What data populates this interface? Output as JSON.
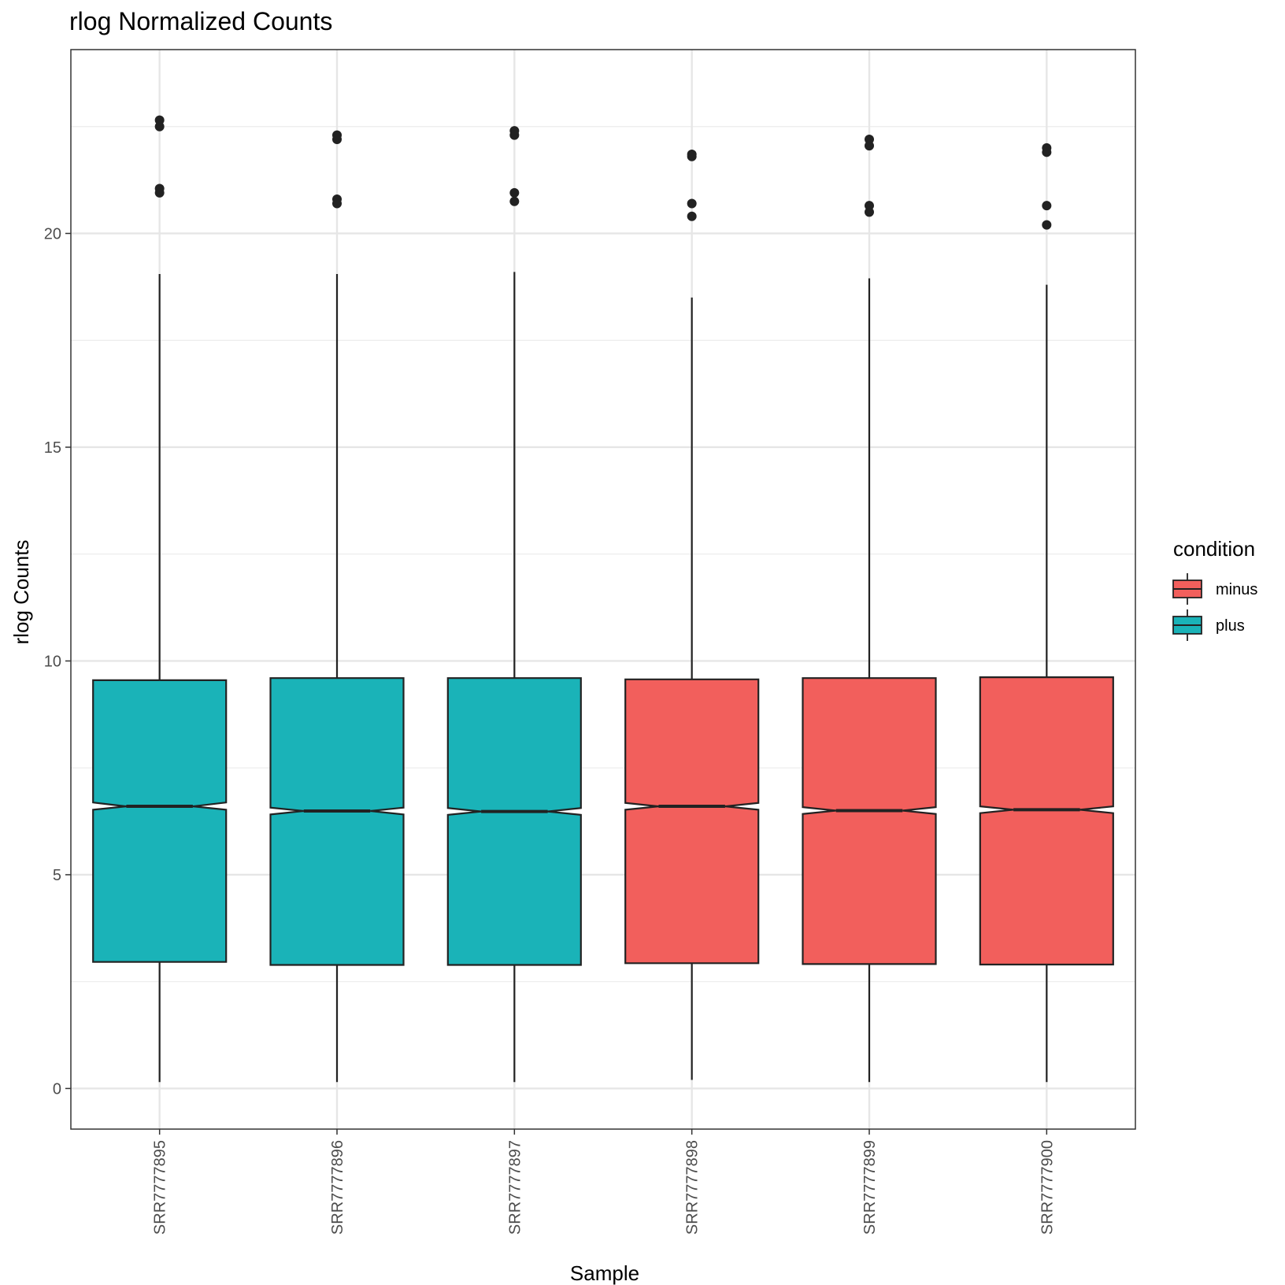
{
  "chart_data": {
    "type": "boxplot",
    "title": "rlog Normalized Counts",
    "xlabel": "Sample",
    "ylabel": "rlog Counts",
    "ylim": [
      -0.95,
      24.3
    ],
    "yticks": [
      0,
      5,
      10,
      15,
      20
    ],
    "grid": true,
    "notched": true,
    "legend": {
      "title": "condition",
      "position": "right",
      "entries": [
        {
          "label": "minus",
          "color": "#F25F5C"
        },
        {
          "label": "plus",
          "color": "#1AB3B8"
        }
      ]
    },
    "samples": [
      {
        "name": "SRR7777895",
        "condition": "plus",
        "lower_whisker": 0.15,
        "q1": 2.96,
        "median": 6.6,
        "q3": 9.55,
        "upper_whisker": 19.05,
        "notch": [
          6.52,
          6.69
        ],
        "outliers": [
          20.95,
          21.05,
          22.5,
          22.65
        ]
      },
      {
        "name": "SRR7777896",
        "condition": "plus",
        "lower_whisker": 0.15,
        "q1": 2.89,
        "median": 6.49,
        "q3": 9.6,
        "upper_whisker": 19.05,
        "notch": [
          6.41,
          6.57
        ],
        "outliers": [
          20.7,
          20.8,
          22.2,
          22.3
        ]
      },
      {
        "name": "SRR7777897",
        "condition": "plus",
        "lower_whisker": 0.15,
        "q1": 2.89,
        "median": 6.48,
        "q3": 9.6,
        "upper_whisker": 19.1,
        "notch": [
          6.4,
          6.56
        ],
        "outliers": [
          20.75,
          20.95,
          22.3,
          22.4
        ]
      },
      {
        "name": "SRR7777898",
        "condition": "minus",
        "lower_whisker": 0.2,
        "q1": 2.93,
        "median": 6.6,
        "q3": 9.57,
        "upper_whisker": 18.5,
        "notch": [
          6.52,
          6.68
        ],
        "outliers": [
          20.4,
          20.7,
          21.8,
          21.85
        ]
      },
      {
        "name": "SRR7777899",
        "condition": "minus",
        "lower_whisker": 0.15,
        "q1": 2.91,
        "median": 6.5,
        "q3": 9.6,
        "upper_whisker": 18.95,
        "notch": [
          6.42,
          6.58
        ],
        "outliers": [
          20.5,
          20.65,
          22.05,
          22.2
        ]
      },
      {
        "name": "SRR7777900",
        "condition": "minus",
        "lower_whisker": 0.15,
        "q1": 2.9,
        "median": 6.52,
        "q3": 9.62,
        "upper_whisker": 18.8,
        "notch": [
          6.44,
          6.6
        ],
        "outliers": [
          20.2,
          20.65,
          21.9,
          22.0
        ]
      }
    ]
  }
}
